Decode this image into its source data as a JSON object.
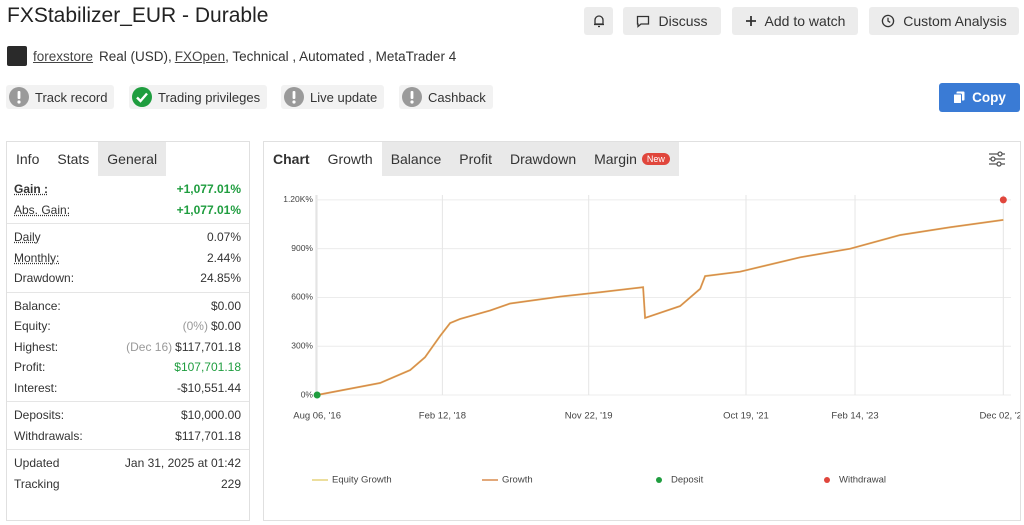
{
  "header": {
    "title": "FXStabilizer_EUR - Durable",
    "buttons": [
      "Discuss",
      "Add to watch",
      "Custom Analysis"
    ],
    "owner": "forexstore",
    "account_type": "Real (USD),",
    "broker": "FXOpen",
    "details": ", Technical , Automated , MetaTrader 4"
  },
  "badges": [
    {
      "label": "Track record",
      "status": "warn"
    },
    {
      "label": "Trading privileges",
      "status": "ok"
    },
    {
      "label": "Live update",
      "status": "warn"
    },
    {
      "label": "Cashback",
      "status": "warn"
    }
  ],
  "copy_button": "Copy",
  "stats": {
    "tabs": [
      "Info",
      "Stats",
      "General"
    ],
    "active_tab": 1,
    "groups": [
      [
        {
          "label": "Gain :",
          "value": "+1,077.01%",
          "color": "#1f9d3f"
        },
        {
          "label": "Abs. Gain:",
          "value": "+1,077.01%",
          "color": "#1f9d3f"
        }
      ],
      [
        {
          "label": "Daily",
          "value": "0.07%"
        },
        {
          "label": "Monthly:",
          "value": "2.44%"
        },
        {
          "label": "Drawdown:",
          "value": "24.85%"
        }
      ],
      [
        {
          "label": "Balance:",
          "value": "$0.00"
        },
        {
          "label": "Equity:",
          "note": "(0%)",
          "value": "$0.00"
        },
        {
          "label": "Highest:",
          "note": "(Dec 16)",
          "value": "$117,701.18"
        },
        {
          "label": "Profit:",
          "value": "$107,701.18",
          "color": "#1f9d3f"
        },
        {
          "label": "Interest:",
          "value": "-$10,551.44"
        }
      ],
      [
        {
          "label": "Deposits:",
          "value": "$10,000.00"
        },
        {
          "label": "Withdrawals:",
          "value": "$117,701.18"
        }
      ],
      [
        {
          "label": "Updated",
          "value": "Jan 31, 2025 at 01:42"
        },
        {
          "label": "Tracking",
          "value": "229"
        }
      ]
    ]
  },
  "chart_panel": {
    "label": "Chart",
    "tabs": [
      "Growth",
      "Balance",
      "Profit",
      "Drawdown",
      "Margin"
    ],
    "active_tab": 0,
    "new_badge": "New"
  },
  "chart_data": {
    "type": "line",
    "x": [
      "2016-08-06",
      "2017-05-12",
      "2017-09-22",
      "2017-11-27",
      "2018-02-02",
      "2018-03-18",
      "2018-05-02",
      "2018-09-12",
      "2018-12-09",
      "2019-07-19",
      "2020-01-12",
      "2020-07-20",
      "2020-07-29",
      "2020-12-31",
      "2021-03-30",
      "2021-04-21",
      "2021-09-23",
      "2022-06-16",
      "2023-01-24",
      "2023-09-02",
      "2024-04-11",
      "2024-12-02"
    ],
    "series": [
      {
        "name": "Equity Growth",
        "color": "#e6d27c",
        "values": [
          0,
          74,
          153,
          232,
          363,
          442,
          468,
          520,
          563,
          605,
          632,
          663,
          474,
          547,
          653,
          731,
          758,
          847,
          900,
          984,
          1032,
          1077.01
        ]
      },
      {
        "name": "Growth",
        "color": "#d98a4e",
        "values": [
          0,
          74,
          153,
          232,
          363,
          442,
          468,
          520,
          563,
          605,
          632,
          663,
          474,
          547,
          653,
          731,
          758,
          847,
          900,
          984,
          1032,
          1077.01
        ]
      },
      {
        "name": "Deposit",
        "type": "scatter",
        "color": "#1f9d3f",
        "values": [
          0,
          null,
          null,
          null,
          null,
          null,
          null,
          null,
          null,
          null,
          null,
          null,
          null,
          null,
          null,
          null,
          null,
          null,
          null,
          null,
          null,
          null
        ]
      },
      {
        "name": "Withdrawal",
        "type": "scatter",
        "color": "#e0463c",
        "values": [
          null,
          null,
          null,
          null,
          null,
          null,
          null,
          null,
          null,
          null,
          null,
          null,
          null,
          null,
          null,
          null,
          null,
          null,
          null,
          null,
          null,
          1200
        ]
      }
    ],
    "xlim": [
      "2016-08-01",
      "2025-01-05"
    ],
    "xticks": [
      {
        "value": "2016-08-06",
        "label": "Aug 06, '16"
      },
      {
        "value": "2018-02-12",
        "label": "Feb 12, '18"
      },
      {
        "value": "2019-11-22",
        "label": "Nov 22, '19"
      },
      {
        "value": "2021-10-19",
        "label": "Oct 19, '21"
      },
      {
        "value": "2023-02-14",
        "label": "Feb 14, '23"
      },
      {
        "value": "2024-12-02",
        "label": "Dec 02, '24"
      }
    ],
    "ylim": [
      0,
      1230
    ],
    "yticks": [
      {
        "value": 0,
        "label": "0%"
      },
      {
        "value": 300,
        "label": "300%"
      },
      {
        "value": 600,
        "label": "600%"
      },
      {
        "value": 900,
        "label": "900%"
      },
      {
        "value": 1200,
        "label": "1.20K%"
      }
    ],
    "grid": true
  }
}
